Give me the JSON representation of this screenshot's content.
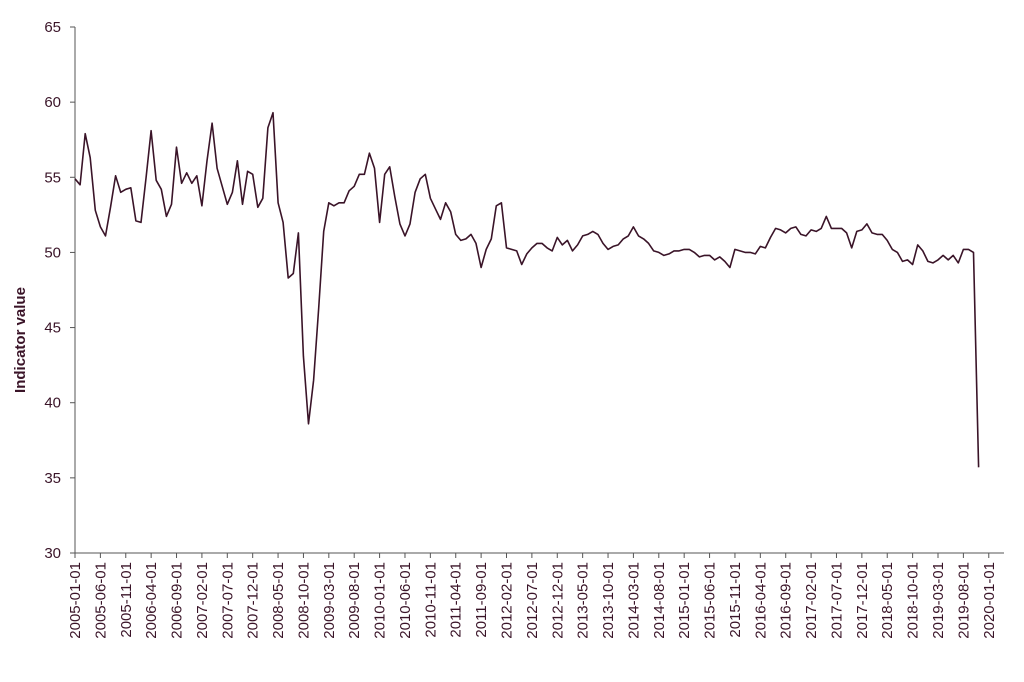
{
  "chart_data": {
    "type": "line",
    "title": "",
    "xlabel": "",
    "ylabel": "Indicator value",
    "ylim": [
      30,
      65
    ],
    "yticks": [
      30,
      35,
      40,
      45,
      50,
      55,
      60,
      65
    ],
    "xticks": [
      "2005-01-01",
      "2005-06-01",
      "2005-11-01",
      "2006-04-01",
      "2006-09-01",
      "2007-02-01",
      "2007-07-01",
      "2007-12-01",
      "2008-05-01",
      "2008-10-01",
      "2009-03-01",
      "2009-08-01",
      "2010-01-01",
      "2010-06-01",
      "2010-11-01",
      "2011-04-01",
      "2011-09-01",
      "2012-02-01",
      "2012-07-01",
      "2012-12-01",
      "2013-05-01",
      "2013-10-01",
      "2014-03-01",
      "2014-08-01",
      "2015-01-01",
      "2015-06-01",
      "2015-11-01",
      "2016-04-01",
      "2016-09-01",
      "2017-02-01",
      "2017-07-01",
      "2017-12-01",
      "2018-05-01",
      "2018-10-01",
      "2019-03-01",
      "2019-08-01",
      "2020-01-01"
    ],
    "grid": false,
    "line_color": "#3a1428",
    "series": [
      {
        "name": "",
        "x_start": "2005-01-01",
        "x_end": "2020-04-01",
        "frequency": "monthly",
        "values": [
          54.9,
          54.5,
          57.9,
          56.3,
          52.8,
          51.7,
          51.1,
          53.0,
          55.1,
          54.0,
          54.2,
          54.3,
          52.1,
          52.0,
          55.0,
          58.1,
          54.8,
          54.2,
          52.4,
          53.2,
          57.0,
          54.6,
          55.3,
          54.6,
          55.1,
          53.1,
          56.1,
          58.6,
          55.6,
          54.4,
          53.2,
          54.0,
          56.1,
          53.2,
          55.4,
          55.2,
          53.0,
          53.6,
          58.3,
          59.3,
          53.3,
          52.0,
          48.3,
          48.6,
          51.3,
          43.1,
          38.6,
          41.5,
          46.3,
          51.4,
          53.3,
          53.1,
          53.3,
          53.3,
          54.1,
          54.4,
          55.2,
          55.2,
          56.6,
          55.6,
          52.0,
          55.2,
          55.7,
          53.7,
          51.9,
          51.1,
          51.9,
          54.0,
          54.9,
          55.2,
          53.6,
          52.9,
          52.2,
          53.3,
          52.7,
          51.2,
          50.8,
          50.9,
          51.2,
          50.6,
          49.0,
          50.2,
          50.9,
          53.1,
          53.3,
          50.3,
          50.2,
          50.1,
          49.2,
          49.9,
          50.3,
          50.6,
          50.6,
          50.3,
          50.1,
          51.0,
          50.5,
          50.8,
          50.1,
          50.5,
          51.1,
          51.2,
          51.4,
          51.2,
          50.6,
          50.2,
          50.4,
          50.5,
          50.9,
          51.1,
          51.7,
          51.1,
          50.9,
          50.6,
          50.1,
          50.0,
          49.8,
          49.9,
          50.1,
          50.1,
          50.2,
          50.2,
          50.0,
          49.7,
          49.8,
          49.8,
          49.5,
          49.7,
          49.4,
          49.0,
          50.2,
          50.1,
          50.0,
          50.0,
          49.9,
          50.4,
          50.3,
          51.0,
          51.6,
          51.5,
          51.3,
          51.6,
          51.7,
          51.2,
          51.1,
          51.5,
          51.4,
          51.6,
          52.4,
          51.6,
          51.6,
          51.6,
          51.3,
          50.3,
          51.4,
          51.5,
          51.9,
          51.3,
          51.2,
          51.2,
          50.8,
          50.2,
          50.0,
          49.4,
          49.5,
          49.2,
          50.5,
          50.1,
          49.4,
          49.3,
          49.5,
          49.8,
          49.5,
          49.8,
          49.3,
          50.2,
          50.2,
          50.0,
          35.7
        ]
      }
    ]
  }
}
